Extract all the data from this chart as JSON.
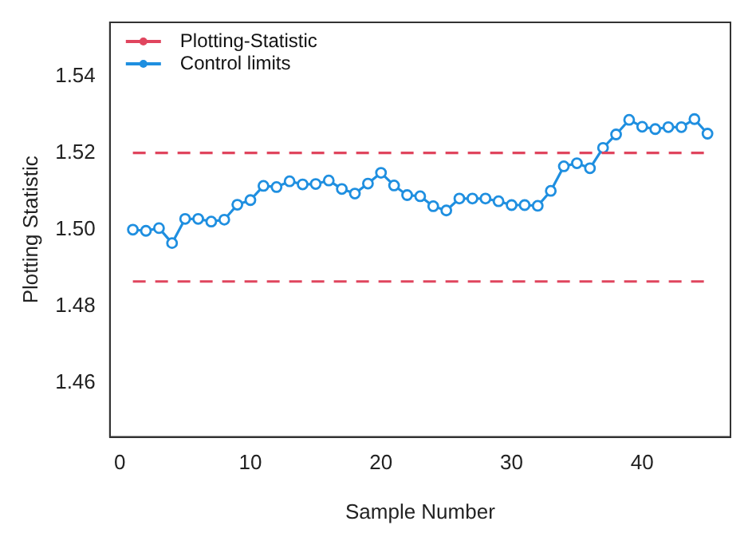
{
  "chart_data": {
    "type": "line",
    "xlabel": "Sample Number",
    "ylabel": "Plotting Statistic",
    "xlim": [
      -0.76,
      46.76
    ],
    "xticks": [
      0,
      10,
      20,
      30,
      40
    ],
    "ylim": [
      1.446,
      1.554
    ],
    "yticks": [
      {
        "value": 1.46,
        "label": "1.46"
      },
      {
        "value": 1.48,
        "label": "1.48"
      },
      {
        "value": 1.5,
        "label": "1.50"
      },
      {
        "value": 1.52,
        "label": "1.52"
      },
      {
        "value": 1.54,
        "label": "1.54"
      }
    ],
    "grid": false,
    "legend": "top left",
    "series": [
      {
        "name": "Plotting-Statistic",
        "color": "#e0455e",
        "line_style": "dashed",
        "marker": "none",
        "x": [
          1,
          45
        ],
        "values": [
          1.52,
          1.52
        ]
      },
      {
        "color": "#e0455e",
        "line_style": "dashed",
        "marker": "none",
        "x": [
          1,
          45
        ],
        "values": [
          1.4865,
          1.4865
        ]
      },
      {
        "name": "Control limits",
        "color": "#1f8fe0",
        "line_style": "solid",
        "marker": "circle",
        "x": [
          1,
          2,
          3,
          4,
          5,
          6,
          7,
          8,
          9,
          10,
          11,
          12,
          13,
          14,
          15,
          16,
          17,
          18,
          19,
          20,
          21,
          22,
          23,
          24,
          25,
          26,
          27,
          28,
          29,
          30,
          31,
          32,
          33,
          34,
          35,
          36,
          37,
          38,
          39,
          40,
          41,
          42,
          43,
          44,
          45
        ],
        "values": [
          1.5,
          1.4997,
          1.5004,
          1.4965,
          1.5028,
          1.5028,
          1.5021,
          1.5026,
          1.5065,
          1.5077,
          1.5114,
          1.5111,
          1.5126,
          1.5118,
          1.5119,
          1.5128,
          1.5106,
          1.5094,
          1.512,
          1.5148,
          1.5115,
          1.509,
          1.5087,
          1.5061,
          1.505,
          1.5081,
          1.5081,
          1.5081,
          1.5074,
          1.5064,
          1.5064,
          1.5062,
          1.5101,
          1.5165,
          1.5173,
          1.516,
          1.5213,
          1.5248,
          1.5286,
          1.5268,
          1.5262,
          1.5267,
          1.5267,
          1.5288,
          1.525
        ]
      }
    ]
  }
}
